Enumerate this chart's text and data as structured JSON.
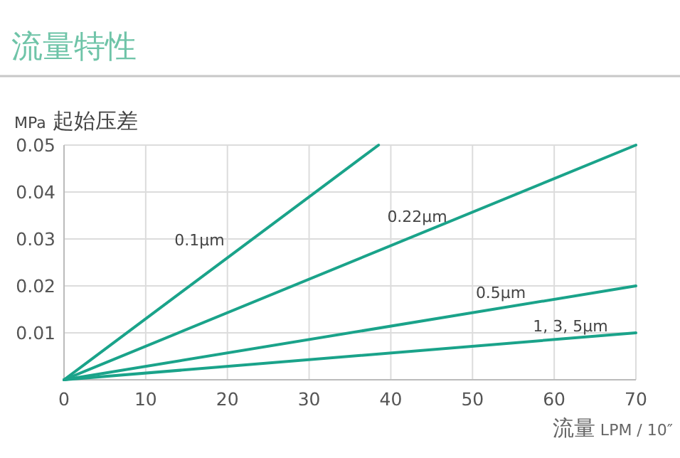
{
  "chart_data": {
    "type": "line",
    "title": "流量特性",
    "xlabel": "流量 LPM / 10″",
    "ylabel": "MPa 起始压差",
    "xlim": [
      0,
      70
    ],
    "ylim": [
      0,
      0.05
    ],
    "xticks": [
      0,
      10,
      20,
      30,
      40,
      50,
      60,
      70
    ],
    "yticks": [
      {
        "value": 0,
        "label": null
      },
      0.01,
      0.02,
      0.03,
      0.04,
      0.05
    ],
    "grid": true,
    "series": [
      {
        "name": "0.1μm",
        "color": "#1aa38a",
        "x": [
          0,
          38.5
        ],
        "values": [
          0,
          0.05
        ]
      },
      {
        "name": "0.22μm",
        "color": "#1aa38a",
        "x": [
          0,
          70
        ],
        "values": [
          0,
          0.05
        ]
      },
      {
        "name": "0.5μm",
        "color": "#1aa38a",
        "x": [
          0,
          70
        ],
        "values": [
          0,
          0.02
        ]
      },
      {
        "name": "1, 3, 5μm",
        "color": "#1aa38a",
        "x": [
          0,
          70
        ],
        "values": [
          0,
          0.01
        ]
      }
    ]
  }
}
